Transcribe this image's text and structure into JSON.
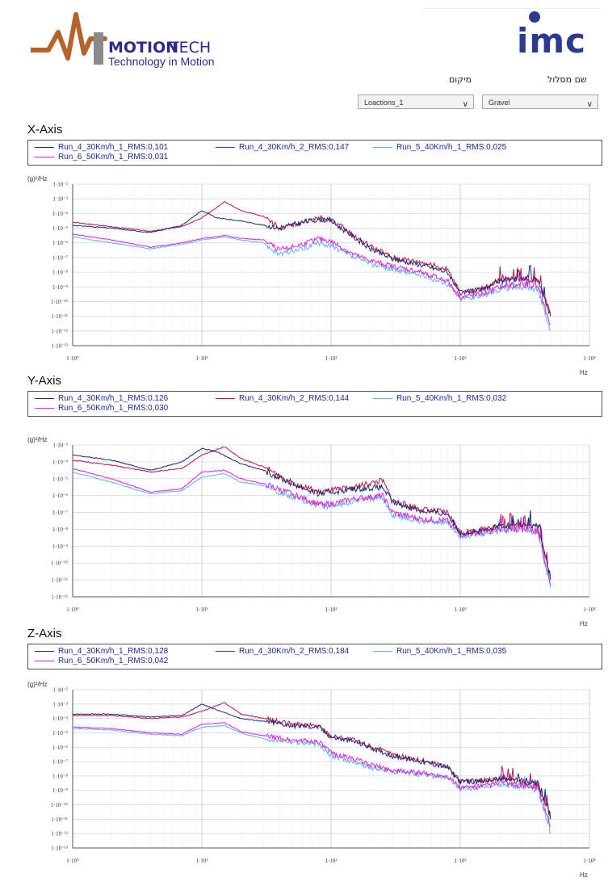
{
  "brand": {
    "left_logo": {
      "name_bold": "MOTION",
      "name_light": "TECH",
      "tagline": "Technology in Motion"
    },
    "right_logo": {
      "text": "imc"
    }
  },
  "filters": {
    "location_label": "מיקום",
    "route_label": "שם מסלול",
    "location_value": "Loactions_1",
    "route_value": "Gravel"
  },
  "colors": {
    "run4_1": "#1c2b78",
    "run4_2": "#c0134a",
    "run5_1": "#5fb3ee",
    "run6_1": "#dd22dd"
  },
  "chart_data": [
    {
      "type": "line",
      "title": "X-Axis",
      "xlabel": "Hz",
      "ylabel": "(g)²/Hz",
      "xscale": "log",
      "yscale": "log",
      "xlim": [
        1,
        10000
      ],
      "ylim": [
        1e-13,
        0.01
      ],
      "xticks": [
        "1·10⁰",
        "1·10¹",
        "1·10²",
        "1·10³",
        "1·10⁴"
      ],
      "yticks": [
        "1·10⁻²",
        "1·10⁻³",
        "1·10⁻⁴",
        "1·10⁻⁵",
        "1·10⁻⁶",
        "1·10⁻⁷",
        "1·10⁻⁸",
        "1·10⁻⁹",
        "1·10⁻¹⁰",
        "1·10⁻¹¹",
        "1·10⁻¹²",
        "1·10⁻¹³"
      ],
      "legend": [
        "Run_4_30Km/h_1_RMS:0,101",
        "Run_4_30Km/h_2_RMS:0,147",
        "Run_5_40Km/h_1_RMS:0,025",
        "Run_6_50Km/h_1_RMS:0,031"
      ],
      "series": [
        {
          "name": "Run_4_30Km/h_1",
          "color_key": "run4_1",
          "x": [
            1,
            2,
            4,
            7,
            10,
            13,
            20,
            30,
            40,
            60,
            80,
            100,
            150,
            200,
            300,
            500,
            800,
            1000,
            1500,
            2000,
            3000,
            4000,
            5000
          ],
          "y": [
            -4.8,
            -5.0,
            -5.3,
            -4.8,
            -3.8,
            -4.3,
            -4.5,
            -4.8,
            -5.0,
            -4.6,
            -4.4,
            -4.5,
            -5.6,
            -6.4,
            -7.1,
            -7.5,
            -8.0,
            -9.4,
            -9.2,
            -8.6,
            -8.4,
            -8.5,
            -11.0
          ]
        },
        {
          "name": "Run_4_30Km/h_2",
          "color_key": "run4_2",
          "x": [
            1,
            2,
            4,
            7,
            10,
            15,
            20,
            30,
            40,
            60,
            80,
            100,
            150,
            200,
            300,
            500,
            800,
            1000,
            1500,
            2000,
            3000,
            4000,
            5000
          ],
          "y": [
            -4.6,
            -4.9,
            -5.2,
            -4.9,
            -4.3,
            -3.2,
            -3.8,
            -4.2,
            -5.0,
            -4.6,
            -4.3,
            -4.4,
            -5.5,
            -6.2,
            -7.0,
            -7.3,
            -7.8,
            -9.4,
            -9.1,
            -8.5,
            -8.5,
            -8.6,
            -10.8
          ]
        },
        {
          "name": "Run_5_40Km/h_1",
          "color_key": "run5_1",
          "x": [
            1,
            2,
            4,
            7,
            10,
            15,
            20,
            30,
            40,
            60,
            80,
            100,
            150,
            200,
            300,
            500,
            800,
            1000,
            1500,
            2000,
            3000,
            4000,
            5000
          ],
          "y": [
            -5.6,
            -6.0,
            -6.4,
            -6.1,
            -5.8,
            -5.6,
            -5.8,
            -6.0,
            -6.8,
            -6.4,
            -6.0,
            -6.2,
            -7.0,
            -7.4,
            -7.8,
            -8.2,
            -8.8,
            -9.8,
            -9.6,
            -9.2,
            -9.0,
            -9.2,
            -12.0
          ]
        },
        {
          "name": "Run_6_50Km/h_1",
          "color_key": "run6_1",
          "x": [
            1,
            2,
            4,
            7,
            10,
            15,
            20,
            30,
            40,
            60,
            80,
            100,
            150,
            200,
            300,
            500,
            800,
            1000,
            1500,
            2000,
            3000,
            4000,
            5000
          ],
          "y": [
            -5.4,
            -5.8,
            -6.3,
            -6.0,
            -5.7,
            -5.5,
            -5.7,
            -5.8,
            -6.5,
            -6.1,
            -5.7,
            -5.9,
            -6.8,
            -7.2,
            -7.6,
            -8.0,
            -8.6,
            -9.7,
            -9.5,
            -9.0,
            -8.9,
            -9.0,
            -11.6
          ]
        }
      ]
    },
    {
      "type": "line",
      "title": "Y-Axis",
      "xlabel": "Hz",
      "ylabel": "(g)²/Hz",
      "xscale": "log",
      "yscale": "log",
      "xlim": [
        1,
        10000
      ],
      "ylim": [
        1e-12,
        0.001
      ],
      "xticks": [
        "1·10⁰",
        "1·10¹",
        "1·10²",
        "1·10³",
        "1·10⁴"
      ],
      "yticks": [
        "1·10⁻³",
        "1·10⁻⁴",
        "1·10⁻⁵",
        "1·10⁻⁶",
        "1·10⁻⁷",
        "1·10⁻⁸",
        "1·10⁻⁹",
        "1·10⁻¹⁰",
        "1·10⁻¹¹",
        "1·10⁻¹²"
      ],
      "legend": [
        "Run_4_30Km/h_1_RMS:0,126",
        "Run_4_30Km/h_2_RMS:0,144",
        "Run_5_40Km/h_1_RMS:0,032",
        "Run_6_50Km/h_1_RMS:0,030"
      ],
      "series": [
        {
          "name": "Run_4_30Km/h_1",
          "color_key": "run4_1",
          "x": [
            1,
            2,
            4,
            7,
            10,
            13,
            20,
            30,
            50,
            80,
            100,
            150,
            250,
            300,
            500,
            800,
            1000,
            1500,
            2000,
            3000,
            4000,
            5000
          ],
          "y": [
            -3.6,
            -3.9,
            -4.5,
            -4.0,
            -3.2,
            -3.4,
            -4.1,
            -4.5,
            -5.3,
            -5.9,
            -5.8,
            -5.6,
            -5.5,
            -6.4,
            -6.9,
            -7.1,
            -8.2,
            -8.1,
            -7.8,
            -7.7,
            -7.8,
            -11.0
          ]
        },
        {
          "name": "Run_4_30Km/h_2",
          "color_key": "run4_2",
          "x": [
            1,
            2,
            4,
            7,
            10,
            15,
            20,
            30,
            50,
            80,
            100,
            150,
            250,
            300,
            500,
            800,
            1000,
            1500,
            2000,
            3000,
            4000,
            5000
          ],
          "y": [
            -3.9,
            -4.2,
            -4.6,
            -4.4,
            -3.6,
            -3.1,
            -3.8,
            -4.3,
            -5.2,
            -5.8,
            -5.7,
            -5.5,
            -5.1,
            -6.3,
            -6.8,
            -7.0,
            -8.2,
            -8.0,
            -7.8,
            -7.8,
            -7.9,
            -10.8
          ]
        },
        {
          "name": "Run_5_40Km/h_1",
          "color_key": "run5_1",
          "x": [
            1,
            2,
            4,
            7,
            10,
            15,
            20,
            30,
            50,
            80,
            100,
            150,
            250,
            300,
            500,
            800,
            1000,
            1500,
            2000,
            3000,
            4000,
            5000
          ],
          "y": [
            -4.6,
            -5.2,
            -5.9,
            -5.7,
            -4.9,
            -4.7,
            -5.2,
            -5.4,
            -6.1,
            -6.6,
            -6.7,
            -6.3,
            -6.1,
            -7.2,
            -7.5,
            -7.6,
            -8.4,
            -8.3,
            -8.1,
            -8.0,
            -8.2,
            -11.5
          ]
        },
        {
          "name": "Run_6_50Km/h_1",
          "color_key": "run6_1",
          "x": [
            1,
            2,
            4,
            7,
            10,
            15,
            20,
            30,
            50,
            80,
            100,
            150,
            250,
            300,
            500,
            800,
            1000,
            1500,
            2000,
            3000,
            4000,
            5000
          ],
          "y": [
            -4.4,
            -5.0,
            -5.8,
            -5.6,
            -4.6,
            -4.5,
            -5.0,
            -5.3,
            -5.9,
            -6.5,
            -6.5,
            -6.2,
            -6.0,
            -7.0,
            -7.4,
            -7.5,
            -8.3,
            -8.2,
            -8.0,
            -8.0,
            -8.1,
            -11.3
          ]
        }
      ]
    },
    {
      "type": "line",
      "title": "Z-Axis",
      "xlabel": "Hz",
      "ylabel": "(g)²/Hz",
      "xscale": "log",
      "yscale": "log",
      "xlim": [
        1,
        10000
      ],
      "ylim": [
        1e-13,
        0.01
      ],
      "xticks": [
        "1·10⁰",
        "1·10¹",
        "1·10²",
        "1·10³",
        "1·10⁴"
      ],
      "yticks": [
        "1·10⁻²",
        "1·10⁻³",
        "1·10⁻⁴",
        "1·10⁻⁵",
        "1·10⁻⁶",
        "1·10⁻⁷",
        "1·10⁻⁸",
        "1·10⁻⁹",
        "1·10⁻¹⁰",
        "1·10⁻¹¹",
        "1·10⁻¹²",
        "1·10⁻¹³"
      ],
      "legend": [
        "Run_4_30Km/h_1_RMS:0,128",
        "Run_4_30Km/h_2_RMS:0,184",
        "Run_5_40Km/h_1_RMS:0,035",
        "Run_6_50Km/h_1_RMS:0,042"
      ],
      "series": [
        {
          "name": "Run_4_30Km/h_1",
          "color_key": "run4_1",
          "x": [
            1,
            2,
            4,
            7,
            10,
            13,
            20,
            30,
            50,
            80,
            100,
            150,
            200,
            300,
            500,
            800,
            1000,
            1500,
            2000,
            3000,
            4000,
            5000
          ],
          "y": [
            -3.7,
            -3.7,
            -3.9,
            -3.8,
            -3.0,
            -3.4,
            -4.0,
            -4.2,
            -4.5,
            -4.6,
            -5.3,
            -5.6,
            -6.0,
            -6.6,
            -7.0,
            -7.4,
            -8.4,
            -8.4,
            -8.2,
            -8.3,
            -8.5,
            -11.0
          ]
        },
        {
          "name": "Run_4_30Km/h_2",
          "color_key": "run4_2",
          "x": [
            1,
            2,
            4,
            7,
            10,
            15,
            20,
            30,
            50,
            80,
            100,
            150,
            200,
            300,
            500,
            800,
            1000,
            1500,
            2000,
            3000,
            4000,
            5000
          ],
          "y": [
            -3.8,
            -3.8,
            -4.0,
            -3.9,
            -3.5,
            -2.9,
            -3.7,
            -4.0,
            -4.4,
            -4.5,
            -5.2,
            -5.5,
            -5.9,
            -6.5,
            -6.9,
            -7.3,
            -8.4,
            -8.3,
            -8.2,
            -8.4,
            -8.6,
            -10.8
          ]
        },
        {
          "name": "Run_5_40Km/h_1",
          "color_key": "run5_1",
          "x": [
            1,
            2,
            4,
            7,
            10,
            15,
            20,
            30,
            50,
            80,
            100,
            150,
            200,
            300,
            500,
            800,
            1000,
            1500,
            2000,
            3000,
            4000,
            5000
          ],
          "y": [
            -4.7,
            -4.8,
            -5.1,
            -5.2,
            -4.6,
            -4.5,
            -5.0,
            -5.4,
            -5.6,
            -5.8,
            -6.6,
            -7.0,
            -7.4,
            -7.7,
            -7.9,
            -8.1,
            -8.9,
            -8.8,
            -8.6,
            -8.8,
            -9.0,
            -12.0
          ]
        },
        {
          "name": "Run_6_50Km/h_1",
          "color_key": "run6_1",
          "x": [
            1,
            2,
            4,
            7,
            10,
            15,
            20,
            30,
            50,
            80,
            100,
            150,
            200,
            300,
            500,
            800,
            1000,
            1500,
            2000,
            3000,
            4000,
            5000
          ],
          "y": [
            -4.6,
            -4.7,
            -5.0,
            -5.1,
            -4.4,
            -4.3,
            -4.9,
            -5.2,
            -5.5,
            -5.6,
            -6.4,
            -6.8,
            -7.2,
            -7.6,
            -7.8,
            -8.0,
            -8.8,
            -8.7,
            -8.5,
            -8.7,
            -8.9,
            -11.5
          ]
        }
      ]
    }
  ]
}
